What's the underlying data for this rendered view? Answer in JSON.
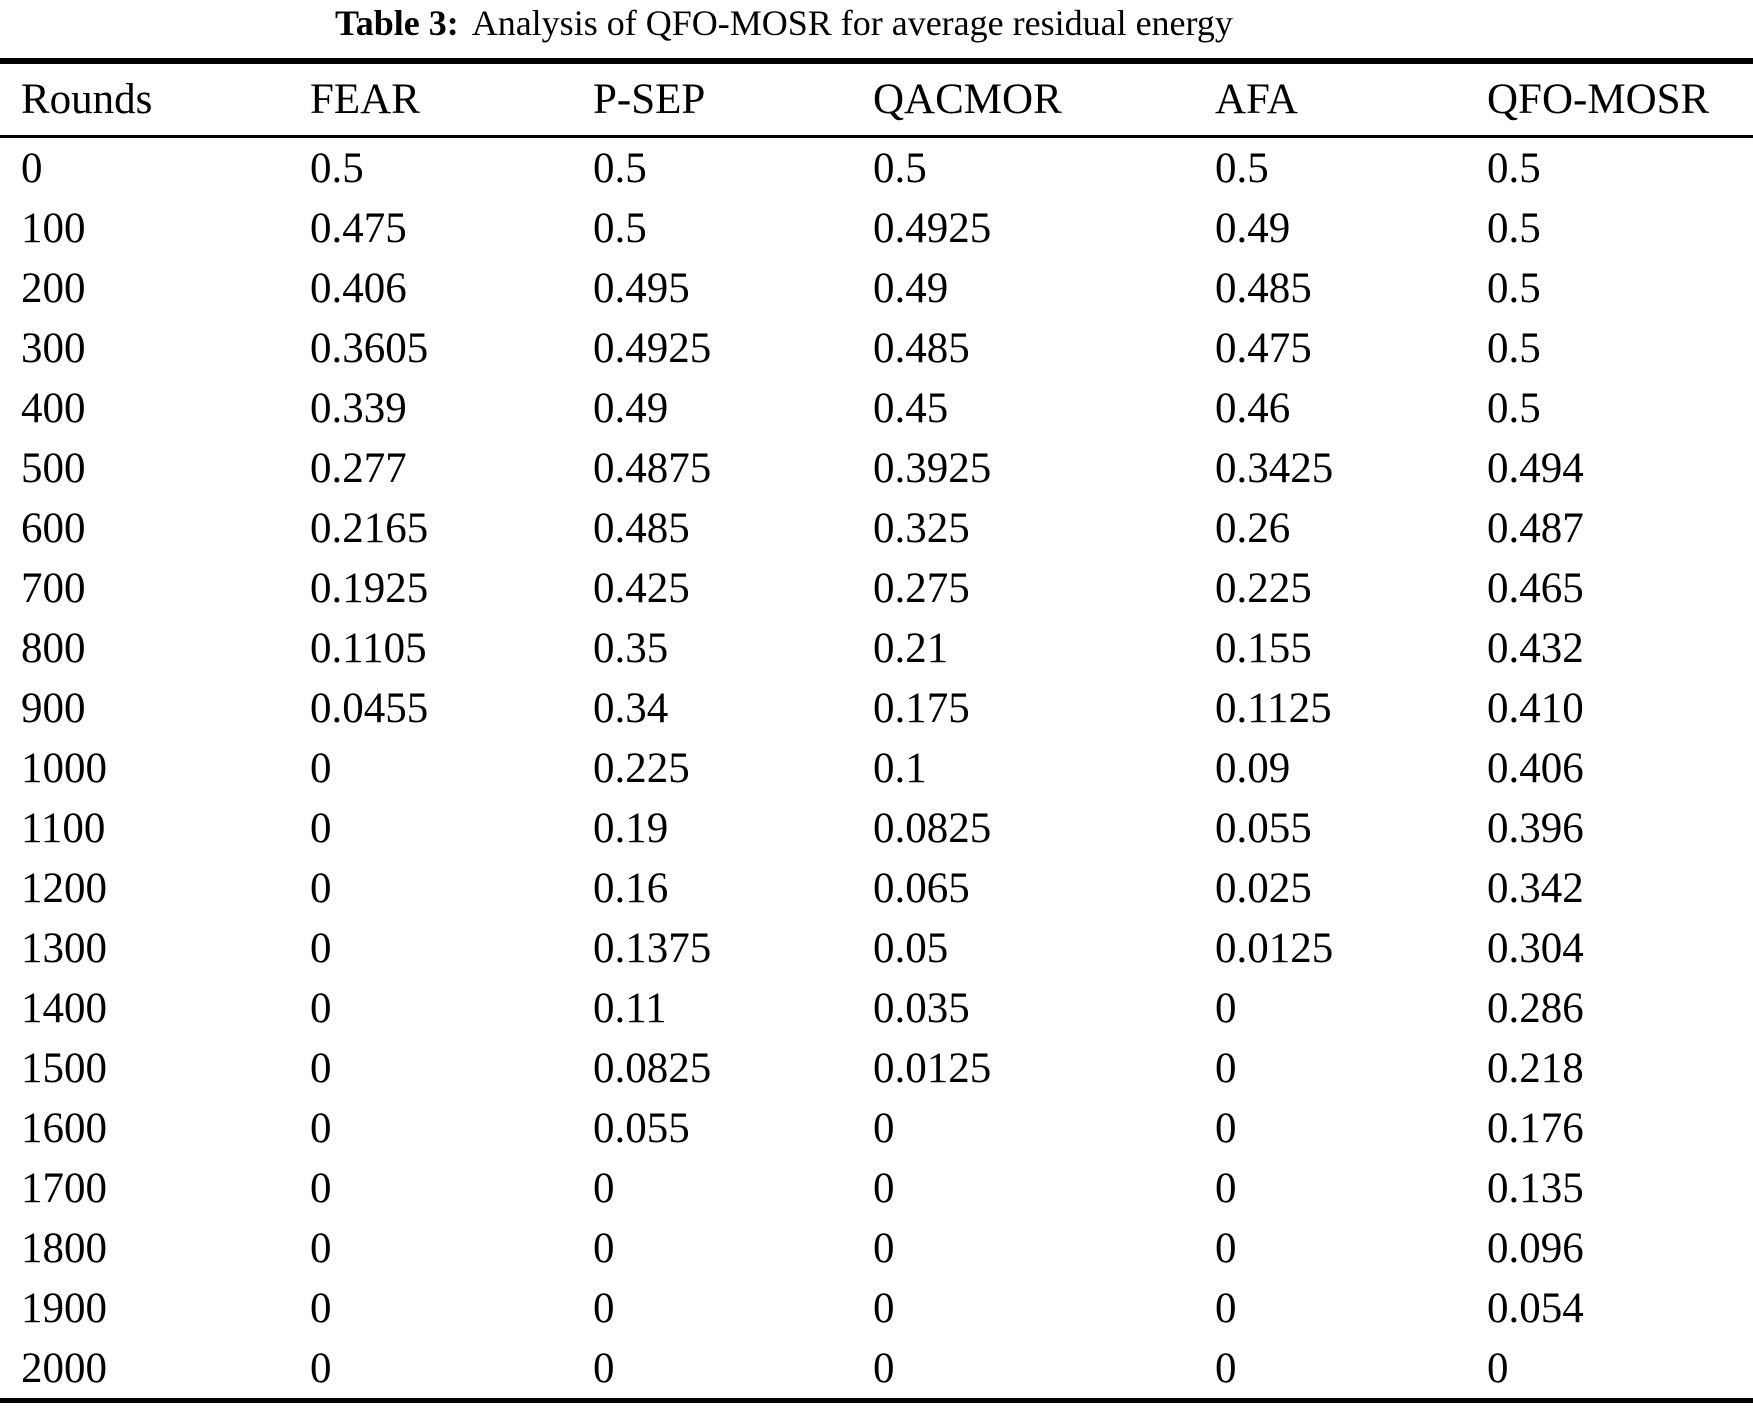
{
  "title": {
    "caption_label": "Table 3:",
    "caption_text": "Analysis of QFO-MOSR for average residual energy"
  },
  "table": {
    "columns": [
      "Rounds",
      "FEAR",
      "P-SEP",
      "QACMOR",
      "AFA",
      "QFO-MOSR"
    ],
    "rows": [
      [
        "0",
        "0.5",
        "0.5",
        "0.5",
        "0.5",
        "0.5"
      ],
      [
        "100",
        "0.475",
        "0.5",
        "0.4925",
        "0.49",
        "0.5"
      ],
      [
        "200",
        "0.406",
        "0.495",
        "0.49",
        "0.485",
        "0.5"
      ],
      [
        "300",
        "0.3605",
        "0.4925",
        "0.485",
        "0.475",
        "0.5"
      ],
      [
        "400",
        "0.339",
        "0.49",
        "0.45",
        "0.46",
        "0.5"
      ],
      [
        "500",
        "0.277",
        "0.4875",
        "0.3925",
        "0.3425",
        "0.494"
      ],
      [
        "600",
        "0.2165",
        "0.485",
        "0.325",
        "0.26",
        "0.487"
      ],
      [
        "700",
        "0.1925",
        "0.425",
        "0.275",
        "0.225",
        "0.465"
      ],
      [
        "800",
        "0.1105",
        "0.35",
        "0.21",
        "0.155",
        "0.432"
      ],
      [
        "900",
        "0.0455",
        "0.34",
        "0.175",
        "0.1125",
        "0.410"
      ],
      [
        "1000",
        "0",
        "0.225",
        "0.1",
        "0.09",
        "0.406"
      ],
      [
        "1100",
        "0",
        "0.19",
        "0.0825",
        "0.055",
        "0.396"
      ],
      [
        "1200",
        "0",
        "0.16",
        "0.065",
        "0.025",
        "0.342"
      ],
      [
        "1300",
        "0",
        "0.1375",
        "0.05",
        "0.0125",
        "0.304"
      ],
      [
        "1400",
        "0",
        "0.11",
        "0.035",
        "0",
        "0.286"
      ],
      [
        "1500",
        "0",
        "0.0825",
        "0.0125",
        "0",
        "0.218"
      ],
      [
        "1600",
        "0",
        "0.055",
        "0",
        "0",
        "0.176"
      ],
      [
        "1700",
        "0",
        "0",
        "0",
        "0",
        "0.135"
      ],
      [
        "1800",
        "0",
        "0",
        "0",
        "0",
        "0.096"
      ],
      [
        "1900",
        "0",
        "0",
        "0",
        "0",
        "0.054"
      ],
      [
        "2000",
        "0",
        "0",
        "0",
        "0",
        "0"
      ]
    ]
  }
}
